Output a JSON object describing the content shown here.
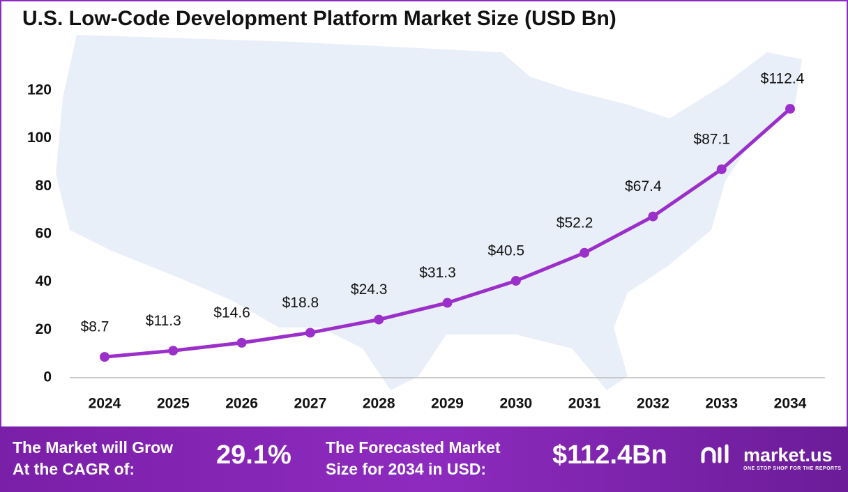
{
  "chart_data": {
    "type": "line",
    "title": "U.S. Low-Code Development Platform Market Size (USD Bn)",
    "categories": [
      "2024",
      "2025",
      "2026",
      "2027",
      "2028",
      "2029",
      "2030",
      "2031",
      "2032",
      "2033",
      "2034"
    ],
    "values": [
      8.7,
      11.3,
      14.6,
      18.8,
      24.3,
      31.3,
      40.5,
      52.2,
      67.4,
      87.1,
      112.4
    ],
    "value_labels": [
      "$8.7",
      "$11.3",
      "$14.6",
      "$18.8",
      "$24.3",
      "$31.3",
      "$40.5",
      "$52.2",
      "$67.4",
      "$87.1",
      "$112.4"
    ],
    "color": "#9b2fc9",
    "ylim": [
      0,
      120
    ],
    "yticks": [
      0,
      20,
      40,
      60,
      80,
      100,
      120
    ],
    "grid": false
  },
  "footer": {
    "cagr_label": [
      "The Market will Grow",
      "At the CAGR of:"
    ],
    "cagr_value": "29.1%",
    "forecast_label": [
      "The Forecasted Market",
      "Size for 2034 in USD:"
    ],
    "forecast_value": "$112.4Bn",
    "brand": "market.us",
    "tagline": "ONE STOP SHOP FOR THE REPORTS"
  }
}
